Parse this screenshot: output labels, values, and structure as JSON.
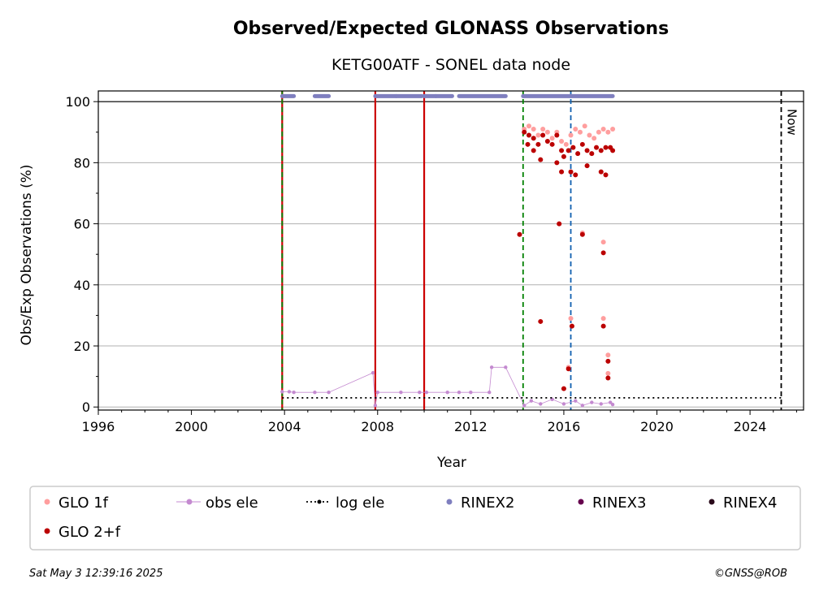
{
  "chart_data": {
    "type": "scatter",
    "title": "Observed/Expected GLONASS Observations",
    "subtitle": "KETG00ATF - SONEL data node",
    "xlabel": "Year",
    "ylabel": "Obs/Exp Observations (%)",
    "xlim": [
      1996,
      2026.3
    ],
    "ylim": [
      -1,
      103.5
    ],
    "xticks": [
      "1996",
      "2000",
      "2004",
      "2008",
      "2012",
      "2016",
      "2020",
      "2024"
    ],
    "yticks": [
      "0",
      "20",
      "40",
      "60",
      "80",
      "100"
    ],
    "grid": "horizontal",
    "legend_position": "bottom",
    "reference_line_y": 100,
    "now_label": "Now",
    "now_year": 2025.34,
    "vertical_lines": [
      {
        "x": 2003.9,
        "color": "#cc0000",
        "style": "solid"
      },
      {
        "x": 2003.9,
        "color": "#008000",
        "style": "dashed"
      },
      {
        "x": 2007.9,
        "color": "#cc0000",
        "style": "solid"
      },
      {
        "x": 2010.0,
        "color": "#cc0000",
        "style": "solid"
      },
      {
        "x": 2014.25,
        "color": "#008000",
        "style": "dashed"
      },
      {
        "x": 2016.3,
        "color": "#1060b0",
        "style": "dashed"
      },
      {
        "x": 2025.34,
        "color": "#000000",
        "style": "dashed"
      }
    ],
    "series": [
      {
        "name": "GLO 1f",
        "color": "#ff9e9e",
        "marker": "dot",
        "points": [
          [
            2014.3,
            91
          ],
          [
            2014.5,
            92
          ],
          [
            2014.7,
            91
          ],
          [
            2014.9,
            89
          ],
          [
            2015.1,
            91
          ],
          [
            2015.3,
            90
          ],
          [
            2015.5,
            88
          ],
          [
            2015.7,
            90
          ],
          [
            2015.9,
            87
          ],
          [
            2016.1,
            86
          ],
          [
            2016.3,
            89
          ],
          [
            2016.5,
            91
          ],
          [
            2016.7,
            90
          ],
          [
            2016.9,
            92
          ],
          [
            2017.1,
            89
          ],
          [
            2017.3,
            88
          ],
          [
            2017.5,
            90
          ],
          [
            2017.7,
            91
          ],
          [
            2017.9,
            90
          ],
          [
            2018.1,
            91
          ],
          [
            2015.8,
            60
          ],
          [
            2016.3,
            29
          ],
          [
            2016.8,
            57
          ],
          [
            2017.7,
            54
          ],
          [
            2017.7,
            29
          ],
          [
            2017.9,
            17
          ],
          [
            2017.9,
            11
          ],
          [
            2016.2,
            13
          ]
        ]
      },
      {
        "name": "GLO 2+f",
        "color": "#bb0000",
        "marker": "dot",
        "points": [
          [
            2014.3,
            90
          ],
          [
            2014.5,
            89
          ],
          [
            2014.7,
            88
          ],
          [
            2014.9,
            86
          ],
          [
            2015.1,
            89
          ],
          [
            2015.3,
            87
          ],
          [
            2015.5,
            86
          ],
          [
            2015.7,
            89
          ],
          [
            2015.9,
            84
          ],
          [
            2016.0,
            82
          ],
          [
            2016.2,
            84
          ],
          [
            2016.4,
            85
          ],
          [
            2016.6,
            83
          ],
          [
            2016.8,
            86
          ],
          [
            2017.0,
            84
          ],
          [
            2017.2,
            83
          ],
          [
            2017.4,
            85
          ],
          [
            2017.6,
            84
          ],
          [
            2017.8,
            85
          ],
          [
            2018.0,
            85
          ],
          [
            2018.1,
            84
          ],
          [
            2014.45,
            86
          ],
          [
            2014.7,
            84
          ],
          [
            2015.0,
            81
          ],
          [
            2015.7,
            80
          ],
          [
            2015.9,
            77
          ],
          [
            2016.3,
            77
          ],
          [
            2016.5,
            76
          ],
          [
            2017.6,
            77
          ],
          [
            2017.8,
            76
          ],
          [
            2017.0,
            79
          ],
          [
            2014.1,
            56.5
          ],
          [
            2015.0,
            28
          ],
          [
            2015.8,
            60
          ],
          [
            2016.35,
            26.5
          ],
          [
            2016.8,
            56.5
          ],
          [
            2017.7,
            50.5
          ],
          [
            2017.7,
            26.5
          ],
          [
            2017.9,
            15
          ],
          [
            2017.9,
            9.5
          ],
          [
            2016.0,
            6
          ],
          [
            2016.2,
            12.5
          ]
        ]
      },
      {
        "name": "obs ele",
        "color": "#c48ad0",
        "marker": "dot-line",
        "points": [
          [
            2003.9,
            5
          ],
          [
            2004.2,
            5
          ],
          [
            2004.4,
            4.8
          ],
          [
            2005.3,
            4.8
          ],
          [
            2005.9,
            4.8
          ],
          [
            2007.8,
            11.2
          ],
          [
            2007.9,
            0.5
          ],
          [
            2008.0,
            4.8
          ],
          [
            2009.0,
            4.8
          ],
          [
            2009.8,
            4.8
          ],
          [
            2010.1,
            4.8
          ],
          [
            2011.0,
            4.8
          ],
          [
            2011.5,
            4.8
          ],
          [
            2012.0,
            4.8
          ],
          [
            2012.8,
            4.8
          ],
          [
            2012.9,
            13
          ],
          [
            2013.5,
            13
          ],
          [
            2014.3,
            0.5
          ],
          [
            2014.6,
            2
          ],
          [
            2015.0,
            1
          ],
          [
            2015.5,
            2.5
          ],
          [
            2016.0,
            1
          ],
          [
            2016.5,
            2
          ],
          [
            2016.8,
            0.5
          ],
          [
            2017.2,
            1.5
          ],
          [
            2017.6,
            1
          ],
          [
            2018.0,
            1.5
          ],
          [
            2018.1,
            0.8
          ]
        ]
      },
      {
        "name": "log ele",
        "color": "#000000",
        "marker": "dotted-line",
        "points": [
          [
            2003.9,
            3
          ],
          [
            2025.34,
            3
          ]
        ]
      },
      {
        "name": "RINEX2",
        "color": "#7f7fbf",
        "marker": "segments",
        "y": 101.8,
        "ranges": [
          [
            2003.9,
            2004.4
          ],
          [
            2005.3,
            2005.9
          ],
          [
            2007.9,
            2008.8
          ],
          [
            2008.8,
            2009.9
          ],
          [
            2010.0,
            2010.5
          ],
          [
            2010.5,
            2011.2
          ],
          [
            2011.5,
            2013.5
          ],
          [
            2014.25,
            2018.1
          ]
        ]
      },
      {
        "name": "RINEX3",
        "color": "#66004d",
        "marker": "dot",
        "points": []
      },
      {
        "name": "RINEX4",
        "color": "#2a0a1a",
        "marker": "dot",
        "points": []
      }
    ]
  },
  "legend": [
    {
      "label": "GLO 1f",
      "color": "#ff9e9e",
      "kind": "dot"
    },
    {
      "label": "obs ele",
      "color": "#c48ad0",
      "kind": "dot-line"
    },
    {
      "label": "log ele",
      "color": "#000000",
      "kind": "dotted-line"
    },
    {
      "label": "RINEX2",
      "color": "#7f7fbf",
      "kind": "dot"
    },
    {
      "label": "RINEX3",
      "color": "#66004d",
      "kind": "dot"
    },
    {
      "label": "RINEX4",
      "color": "#2a0a1a",
      "kind": "dot"
    },
    {
      "label": "GLO 2+f",
      "color": "#bb0000",
      "kind": "dot"
    }
  ],
  "footer": {
    "timestamp": "Sat May  3 12:39:16 2025",
    "credit": "©GNSS@ROB"
  }
}
